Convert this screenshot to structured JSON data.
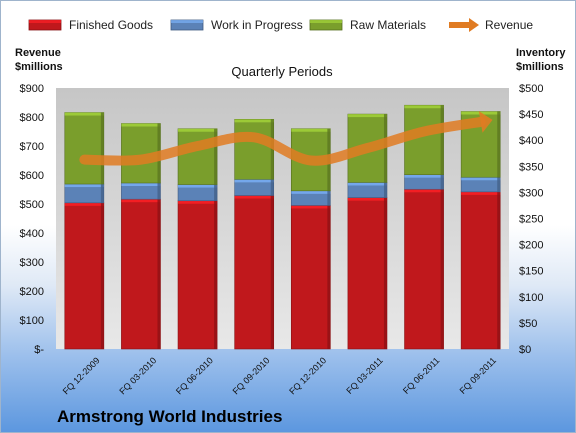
{
  "company": "Armstrong World Industries",
  "chart_data": {
    "type": "bar",
    "stacked": true,
    "subtitle": "Quarterly Periods",
    "categories": [
      "FQ 12-2009",
      "FQ 03-2010",
      "FQ 06-2010",
      "FQ 09-2010",
      "FQ 12-2010",
      "FQ 03-2011",
      "FQ 06-2011",
      "FQ 09-2011"
    ],
    "ylabel_left": [
      "Revenue",
      "$millions"
    ],
    "ylabel_right": [
      "Inventory",
      "$millions"
    ],
    "left_axis": {
      "ylim": [
        0,
        900
      ],
      "ticks": [
        0,
        100,
        200,
        300,
        400,
        500,
        600,
        700,
        800,
        900
      ],
      "tick_labels": [
        "$-",
        "$100",
        "$200",
        "$300",
        "$400",
        "$500",
        "$600",
        "$700",
        "$800",
        "$900"
      ]
    },
    "right_axis": {
      "ylim": [
        0,
        500
      ],
      "ticks": [
        0,
        50,
        100,
        150,
        200,
        250,
        300,
        350,
        400,
        450,
        500
      ],
      "tick_labels": [
        "$0",
        "$50",
        "$100",
        "$150",
        "$200",
        "$250",
        "$300",
        "$350",
        "$400",
        "$450",
        "$500"
      ]
    },
    "legend_position": "top",
    "grid": false,
    "series": [
      {
        "name": "Finished Goods",
        "type": "bar",
        "axis": "right",
        "color": "#c0181c",
        "values": [
          280,
          287,
          284,
          294,
          275,
          290,
          306,
          301
        ]
      },
      {
        "name": "Work in Progress",
        "type": "bar",
        "axis": "right",
        "color": "#5b82b7",
        "values": [
          36,
          31,
          31,
          31,
          28,
          29,
          28,
          28
        ]
      },
      {
        "name": "Raw Materials",
        "type": "bar",
        "axis": "right",
        "color": "#7a9e2c",
        "values": [
          137,
          114,
          107,
          115,
          119,
          131,
          133,
          126
        ]
      },
      {
        "name": "Revenue",
        "type": "line",
        "axis": "left",
        "color": "#e07b22",
        "values": [
          653,
          653,
          700,
          730,
          650,
          693,
          750,
          783
        ]
      }
    ]
  }
}
